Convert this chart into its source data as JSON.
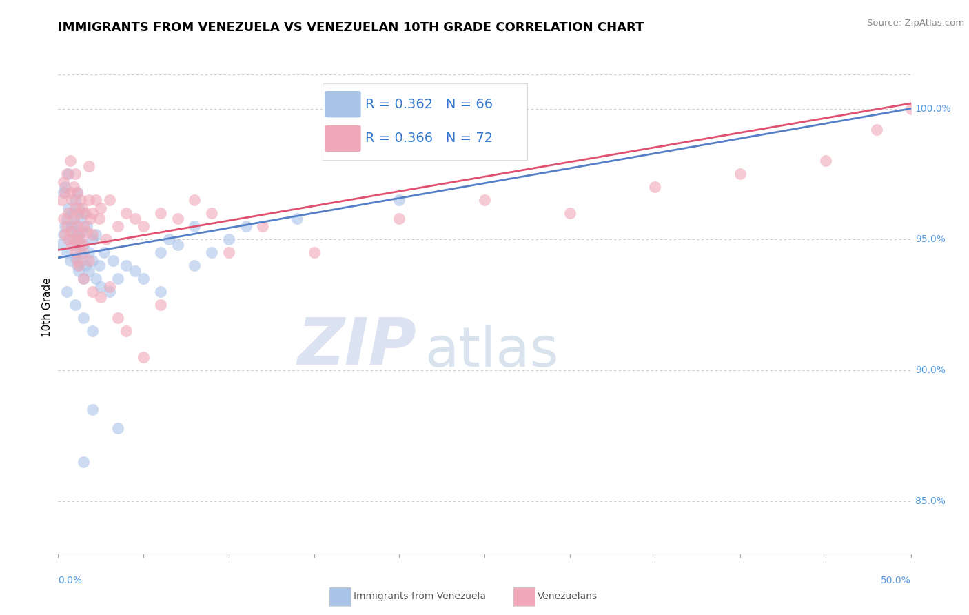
{
  "title": "IMMIGRANTS FROM VENEZUELA VS VENEZUELAN 10TH GRADE CORRELATION CHART",
  "source_text": "Source: ZipAtlas.com",
  "ylabel": "10th Grade",
  "xlim": [
    0.0,
    50.0
  ],
  "ylim": [
    83.0,
    101.5
  ],
  "yticks": [
    85.0,
    90.0,
    95.0,
    100.0
  ],
  "ytick_labels": [
    "85.0%",
    "90.0%",
    "95.0%",
    "100.0%"
  ],
  "legend_blue_label": "R = 0.362   N = 66",
  "legend_pink_label": "R = 0.366   N = 72",
  "bottom_legend_blue": "Immigrants from Venezuela",
  "bottom_legend_pink": "Venezuelans",
  "blue_color": "#aac4e8",
  "pink_color": "#f0a8b8",
  "blue_line_color": "#5580c8",
  "pink_line_color": "#e05070",
  "watermark_zip": "ZIP",
  "watermark_atlas": "atlas",
  "blue_scatter": [
    [
      0.2,
      94.8
    ],
    [
      0.3,
      95.2
    ],
    [
      0.3,
      96.8
    ],
    [
      0.4,
      95.5
    ],
    [
      0.4,
      97.0
    ],
    [
      0.5,
      94.5
    ],
    [
      0.5,
      95.8
    ],
    [
      0.6,
      96.2
    ],
    [
      0.6,
      97.5
    ],
    [
      0.7,
      94.2
    ],
    [
      0.7,
      95.0
    ],
    [
      0.8,
      95.5
    ],
    [
      0.8,
      96.0
    ],
    [
      0.9,
      94.8
    ],
    [
      0.9,
      95.3
    ],
    [
      1.0,
      94.3
    ],
    [
      1.0,
      95.6
    ],
    [
      1.0,
      96.5
    ],
    [
      1.1,
      94.0
    ],
    [
      1.1,
      95.2
    ],
    [
      1.1,
      96.8
    ],
    [
      1.2,
      93.8
    ],
    [
      1.2,
      95.0
    ],
    [
      1.2,
      96.2
    ],
    [
      1.3,
      94.5
    ],
    [
      1.3,
      95.8
    ],
    [
      1.4,
      94.2
    ],
    [
      1.4,
      95.3
    ],
    [
      1.5,
      93.5
    ],
    [
      1.5,
      94.8
    ],
    [
      1.5,
      96.0
    ],
    [
      1.6,
      94.0
    ],
    [
      1.7,
      95.5
    ],
    [
      1.8,
      93.8
    ],
    [
      1.8,
      94.5
    ],
    [
      2.0,
      94.2
    ],
    [
      2.0,
      95.0
    ],
    [
      2.2,
      93.5
    ],
    [
      2.2,
      95.2
    ],
    [
      2.4,
      94.0
    ],
    [
      2.5,
      93.2
    ],
    [
      2.7,
      94.5
    ],
    [
      3.0,
      93.0
    ],
    [
      3.2,
      94.2
    ],
    [
      3.5,
      93.5
    ],
    [
      4.0,
      94.0
    ],
    [
      4.5,
      93.8
    ],
    [
      5.0,
      93.5
    ],
    [
      6.0,
      94.5
    ],
    [
      6.5,
      95.0
    ],
    [
      7.0,
      94.8
    ],
    [
      8.0,
      95.5
    ],
    [
      9.0,
      94.5
    ],
    [
      10.0,
      95.0
    ],
    [
      11.0,
      95.5
    ],
    [
      3.5,
      87.8
    ],
    [
      2.0,
      88.5
    ],
    [
      1.5,
      86.5
    ],
    [
      0.5,
      93.0
    ],
    [
      1.0,
      92.5
    ],
    [
      1.5,
      92.0
    ],
    [
      2.0,
      91.5
    ],
    [
      6.0,
      93.0
    ],
    [
      8.0,
      94.0
    ],
    [
      14.0,
      95.8
    ],
    [
      20.0,
      96.5
    ]
  ],
  "pink_scatter": [
    [
      0.2,
      96.5
    ],
    [
      0.3,
      97.2
    ],
    [
      0.3,
      95.8
    ],
    [
      0.4,
      96.8
    ],
    [
      0.4,
      95.2
    ],
    [
      0.5,
      97.5
    ],
    [
      0.5,
      95.5
    ],
    [
      0.6,
      96.0
    ],
    [
      0.6,
      95.0
    ],
    [
      0.7,
      96.8
    ],
    [
      0.7,
      95.3
    ],
    [
      0.8,
      96.5
    ],
    [
      0.8,
      94.8
    ],
    [
      0.9,
      97.0
    ],
    [
      0.9,
      95.8
    ],
    [
      1.0,
      96.2
    ],
    [
      1.0,
      95.0
    ],
    [
      1.0,
      94.5
    ],
    [
      1.1,
      96.8
    ],
    [
      1.1,
      95.5
    ],
    [
      1.1,
      94.2
    ],
    [
      1.2,
      96.0
    ],
    [
      1.2,
      95.2
    ],
    [
      1.2,
      94.0
    ],
    [
      1.3,
      96.5
    ],
    [
      1.3,
      95.0
    ],
    [
      1.4,
      96.2
    ],
    [
      1.4,
      94.8
    ],
    [
      1.5,
      95.5
    ],
    [
      1.5,
      94.5
    ],
    [
      1.6,
      96.0
    ],
    [
      1.7,
      95.3
    ],
    [
      1.8,
      96.5
    ],
    [
      1.8,
      94.2
    ],
    [
      1.9,
      95.8
    ],
    [
      2.0,
      96.0
    ],
    [
      2.0,
      95.2
    ],
    [
      2.2,
      96.5
    ],
    [
      2.4,
      95.8
    ],
    [
      2.5,
      96.2
    ],
    [
      2.8,
      95.0
    ],
    [
      3.0,
      96.5
    ],
    [
      3.5,
      95.5
    ],
    [
      4.0,
      96.0
    ],
    [
      4.5,
      95.8
    ],
    [
      5.0,
      95.5
    ],
    [
      6.0,
      96.0
    ],
    [
      7.0,
      95.8
    ],
    [
      8.0,
      96.5
    ],
    [
      9.0,
      96.0
    ],
    [
      3.5,
      92.0
    ],
    [
      4.0,
      91.5
    ],
    [
      5.0,
      90.5
    ],
    [
      6.0,
      92.5
    ],
    [
      1.5,
      93.5
    ],
    [
      2.0,
      93.0
    ],
    [
      2.5,
      92.8
    ],
    [
      3.0,
      93.2
    ],
    [
      10.0,
      94.5
    ],
    [
      12.0,
      95.5
    ],
    [
      15.0,
      94.5
    ],
    [
      20.0,
      95.8
    ],
    [
      25.0,
      96.5
    ],
    [
      30.0,
      96.0
    ],
    [
      35.0,
      97.0
    ],
    [
      40.0,
      97.5
    ],
    [
      45.0,
      98.0
    ],
    [
      48.0,
      99.2
    ],
    [
      50.0,
      100.0
    ],
    [
      1.8,
      97.8
    ],
    [
      0.7,
      98.0
    ],
    [
      1.0,
      97.5
    ]
  ]
}
